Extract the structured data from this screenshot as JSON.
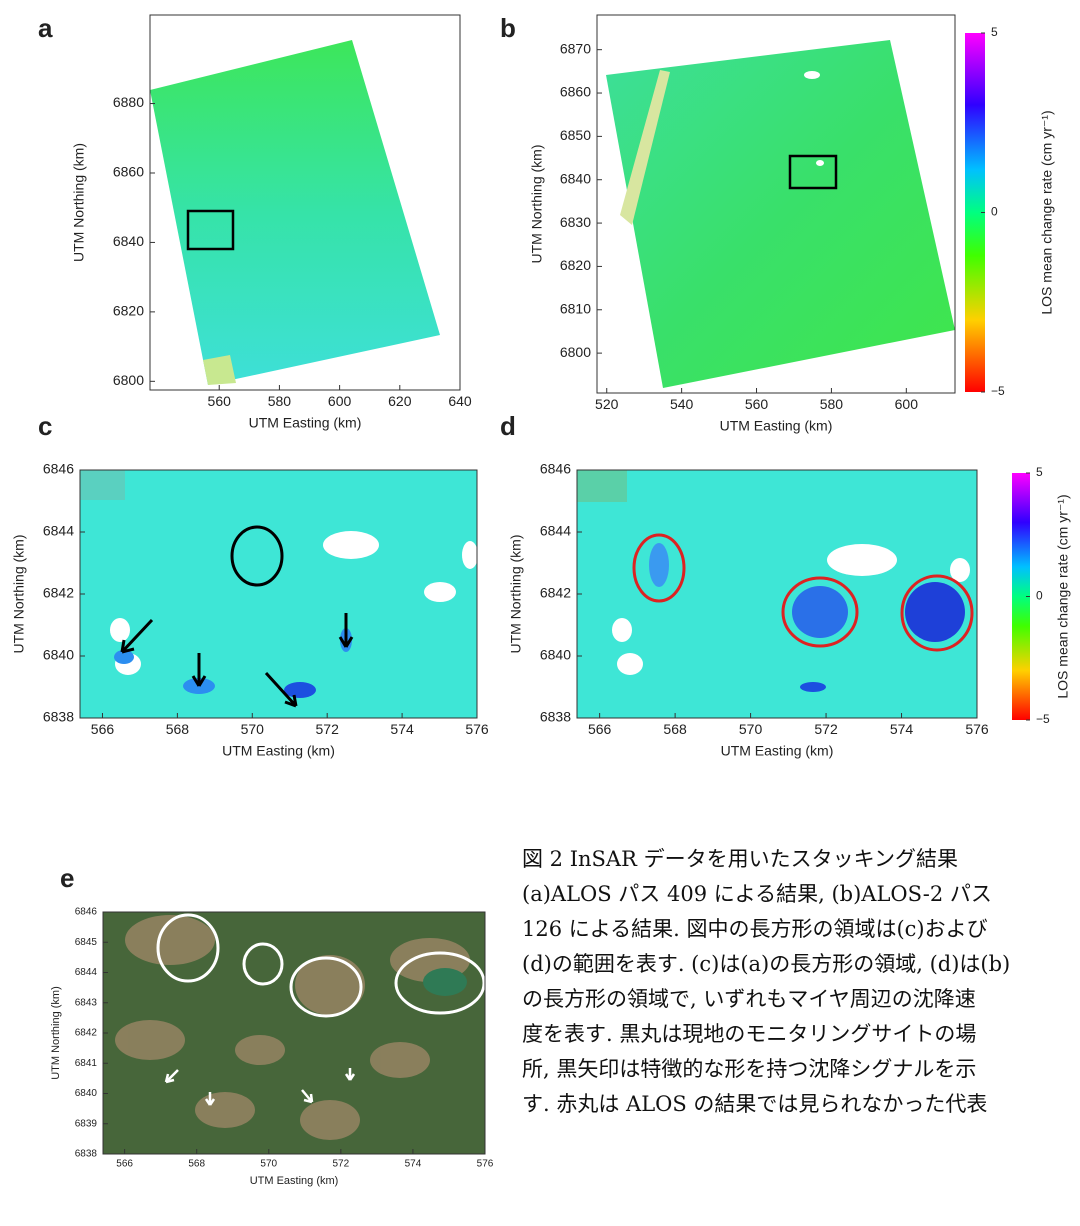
{
  "panels": [
    {
      "label": "a",
      "xlabel": "UTM Easting (km)",
      "ylabel": "UTM Northing (km)",
      "xlim": [
        537,
        640
      ],
      "ylim": [
        6797.5,
        6905.5
      ],
      "xticks": [
        560,
        580,
        600,
        620,
        640
      ],
      "yticks": [
        6800,
        6820,
        6840,
        6860,
        6880
      ]
    },
    {
      "label": "b",
      "xlabel": "UTM Easting (km)",
      "ylabel": "UTM Northing (km)",
      "xlim": [
        517.4,
        613
      ],
      "ylim": [
        6790.8,
        6878
      ],
      "xticks": [
        520,
        540,
        560,
        580,
        600
      ],
      "yticks": [
        6800,
        6810,
        6820,
        6830,
        6840,
        6850,
        6860,
        6870
      ],
      "colorbar": {
        "label": "LOS mean change rate (cm yr⁻¹)",
        "lim": [
          -5,
          5
        ],
        "ticks": [
          5,
          0,
          {
            "value": -5,
            "label": "−5"
          }
        ]
      }
    },
    {
      "label": "c",
      "xlabel": "UTM Easting (km)",
      "ylabel": "UTM Northing (km)",
      "xlim": [
        565.4,
        576
      ],
      "ylim": [
        6838,
        6846
      ],
      "xticks": [
        566,
        568,
        570,
        572,
        574,
        576
      ],
      "yticks": [
        6838,
        6840,
        6842,
        6844,
        6846
      ]
    },
    {
      "label": "d",
      "xlabel": "UTM Easting (km)",
      "ylabel": "UTM Northing (km)",
      "xlim": [
        565.4,
        576
      ],
      "ylim": [
        6838,
        6846
      ],
      "xticks": [
        566,
        568,
        570,
        572,
        574,
        576
      ],
      "yticks": [
        6838,
        6840,
        6842,
        6844,
        6846
      ],
      "colorbar": {
        "label": "LOS mean change rate (cm yr⁻¹)",
        "lim": [
          -5,
          5
        ],
        "ticks": [
          5,
          0,
          {
            "value": -5,
            "label": "−5"
          }
        ]
      }
    },
    {
      "label": "e",
      "xlabel": "UTM Easting (km)",
      "ylabel": "UTM Northing (km)",
      "xlim": [
        565.4,
        576
      ],
      "ylim": [
        6838,
        6846
      ],
      "xticks": [
        566,
        568,
        570,
        572,
        574,
        576
      ],
      "yticks": [
        6838,
        6839,
        6840,
        6841,
        6842,
        6843,
        6844,
        6845,
        6846
      ]
    }
  ],
  "caption": {
    "lines": [
      "図 2 InSAR データを用いたスタッキング結果",
      "(a)ALOS パス 409 による結果, (b)ALOS-2 パス",
      "126 による結果. 図中の長方形の領域は(c)および",
      "(d)の範囲を表す. (c)は(a)の長方形の領域, (d)は(b)",
      "の長方形の領域で, いずれもマイヤ周辺の沈降速",
      "度を表す. 黒丸は現地のモニタリングサイトの場",
      "所, 黒矢印は特徴的な形を持つ沈降シグナルを示",
      "す. 赤丸は ALOS の結果では見られなかった代表"
    ]
  }
}
